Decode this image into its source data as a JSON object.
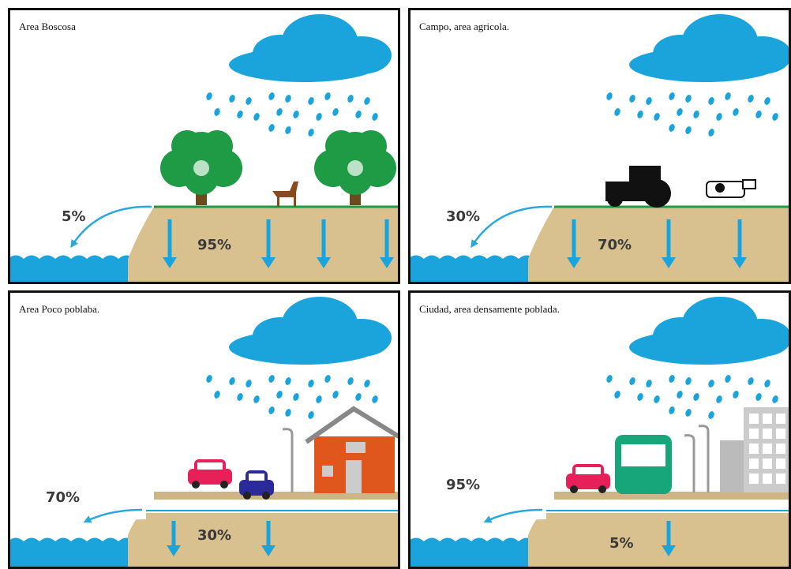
{
  "panels": [
    {
      "title": "Area Boscosa",
      "runoff": "5%",
      "infiltration": "95%"
    },
    {
      "title": "Campo, area agricola.",
      "runoff": "30%",
      "infiltration": "70%"
    },
    {
      "title": "Area Poco poblaba.",
      "runoff": "70%",
      "infiltration": "30%"
    },
    {
      "title": "Ciudad, area densamente poblada.",
      "runoff": "95%",
      "infiltration": "5%"
    }
  ]
}
